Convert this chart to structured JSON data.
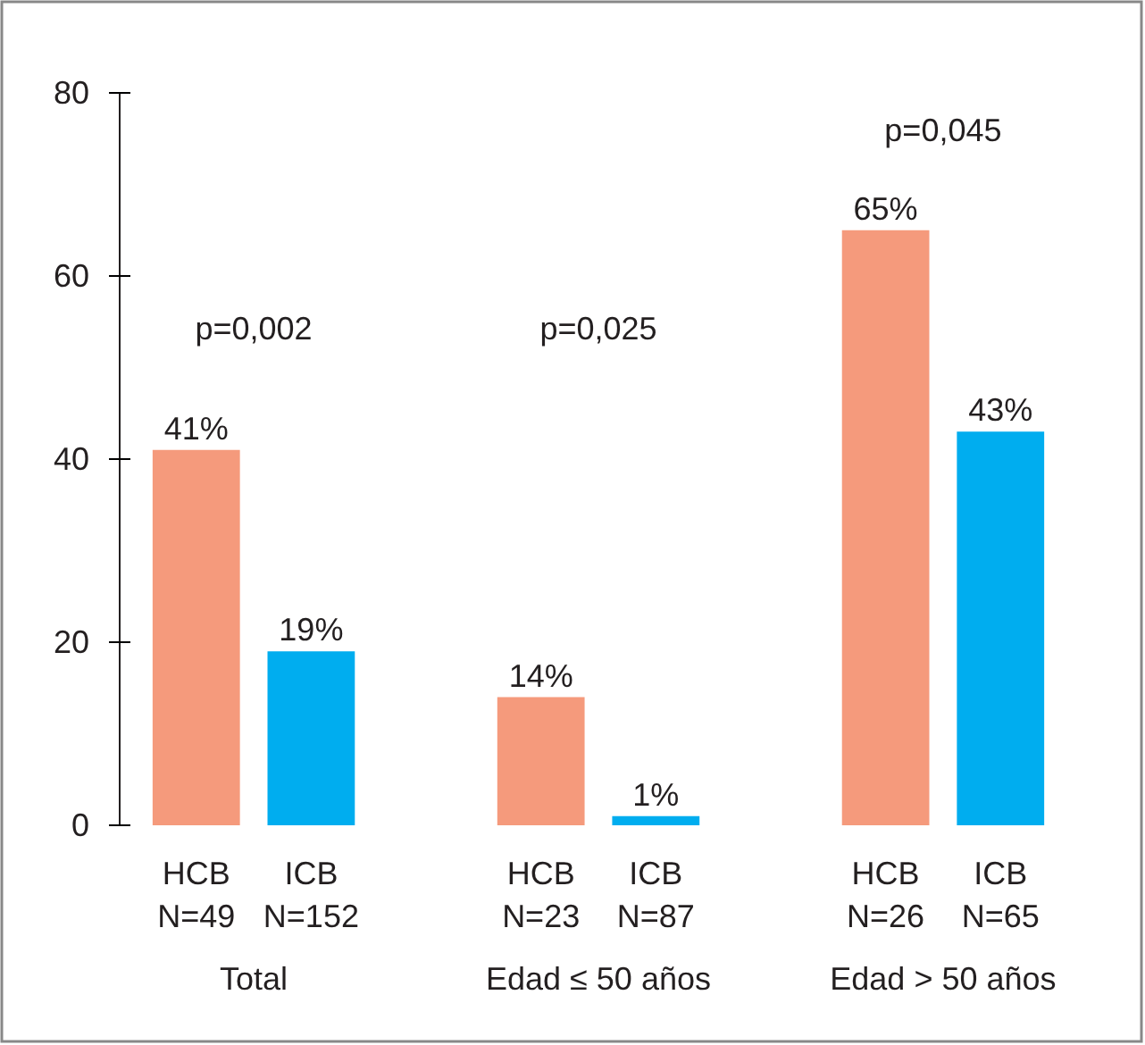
{
  "chart_data": {
    "type": "bar",
    "categories": [
      "HCB N=49",
      "ICB N=152",
      null,
      "HCB N=23",
      "ICB N=87",
      null,
      "HCB N=26",
      "ICB N=65"
    ],
    "values": [
      41,
      19,
      null,
      14,
      1,
      null,
      65,
      43
    ],
    "colors": [
      "#f59a7c",
      "#00adef",
      null,
      "#f59a7c",
      "#00adef",
      null,
      "#f59a7c",
      "#00adef"
    ],
    "value_labels": [
      "41%",
      "19%",
      null,
      "14%",
      "1%",
      null,
      "65%",
      "43%"
    ],
    "ylim": [
      0,
      80
    ],
    "yticks": [
      0,
      20,
      40,
      60,
      80
    ],
    "grid": false,
    "annotations": [
      "Total",
      "Edad ≤ 50 años",
      "Edad > 50 años",
      "p=0,002",
      "p=0,025",
      "p=0,045"
    ]
  }
}
